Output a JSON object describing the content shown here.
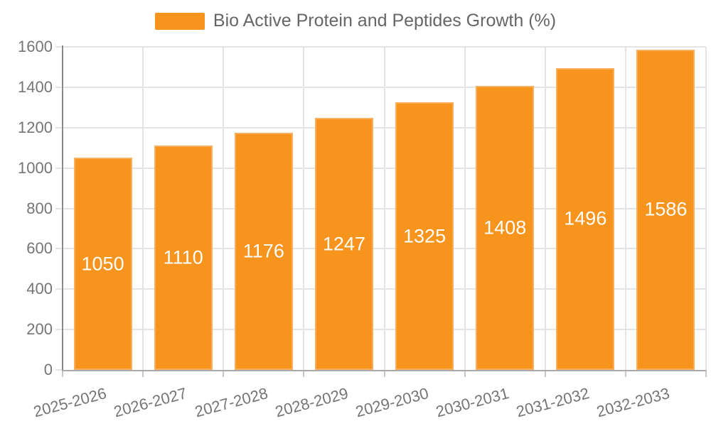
{
  "chart_data": {
    "type": "bar",
    "title": "Bio Active Protein and Peptides Growth (%)",
    "legend": {
      "label": "Bio Active Protein and Peptides Growth (%)",
      "position": "top"
    },
    "categories": [
      "2025-2026",
      "2026-2027",
      "2027-2028",
      "2028-2029",
      "2029-2030",
      "2030-2031",
      "2031-2032",
      "2032-2033"
    ],
    "series": [
      {
        "name": "Bio Active Protein and Peptides Growth (%)",
        "values": [
          1050,
          1110,
          1176,
          1247,
          1325,
          1408,
          1496,
          1586
        ]
      }
    ],
    "value_labels": [
      "1050",
      "1110",
      "1176",
      "1247",
      "1325",
      "1408",
      "1496",
      "1586"
    ],
    "y_tick_labels": [
      "0",
      "200",
      "400",
      "600",
      "800",
      "1000",
      "1200",
      "1400",
      "1600"
    ],
    "xlabel": "",
    "ylabel": "",
    "ylim": [
      0,
      1600
    ],
    "ytick_step": 200,
    "grid": true,
    "x_label_rotation_deg": -15,
    "colors": {
      "bar": "#F7941E",
      "bar_border": "#F9AE5C",
      "value_label": "#FFFFFF",
      "axis_text": "#757575",
      "grid_line": "#E4E4E4",
      "y_axis_line": "#8A8A8A",
      "x_axis_line": "#AAAAAA",
      "tick": "#C8C8C8",
      "legend_text": "#666666"
    }
  }
}
